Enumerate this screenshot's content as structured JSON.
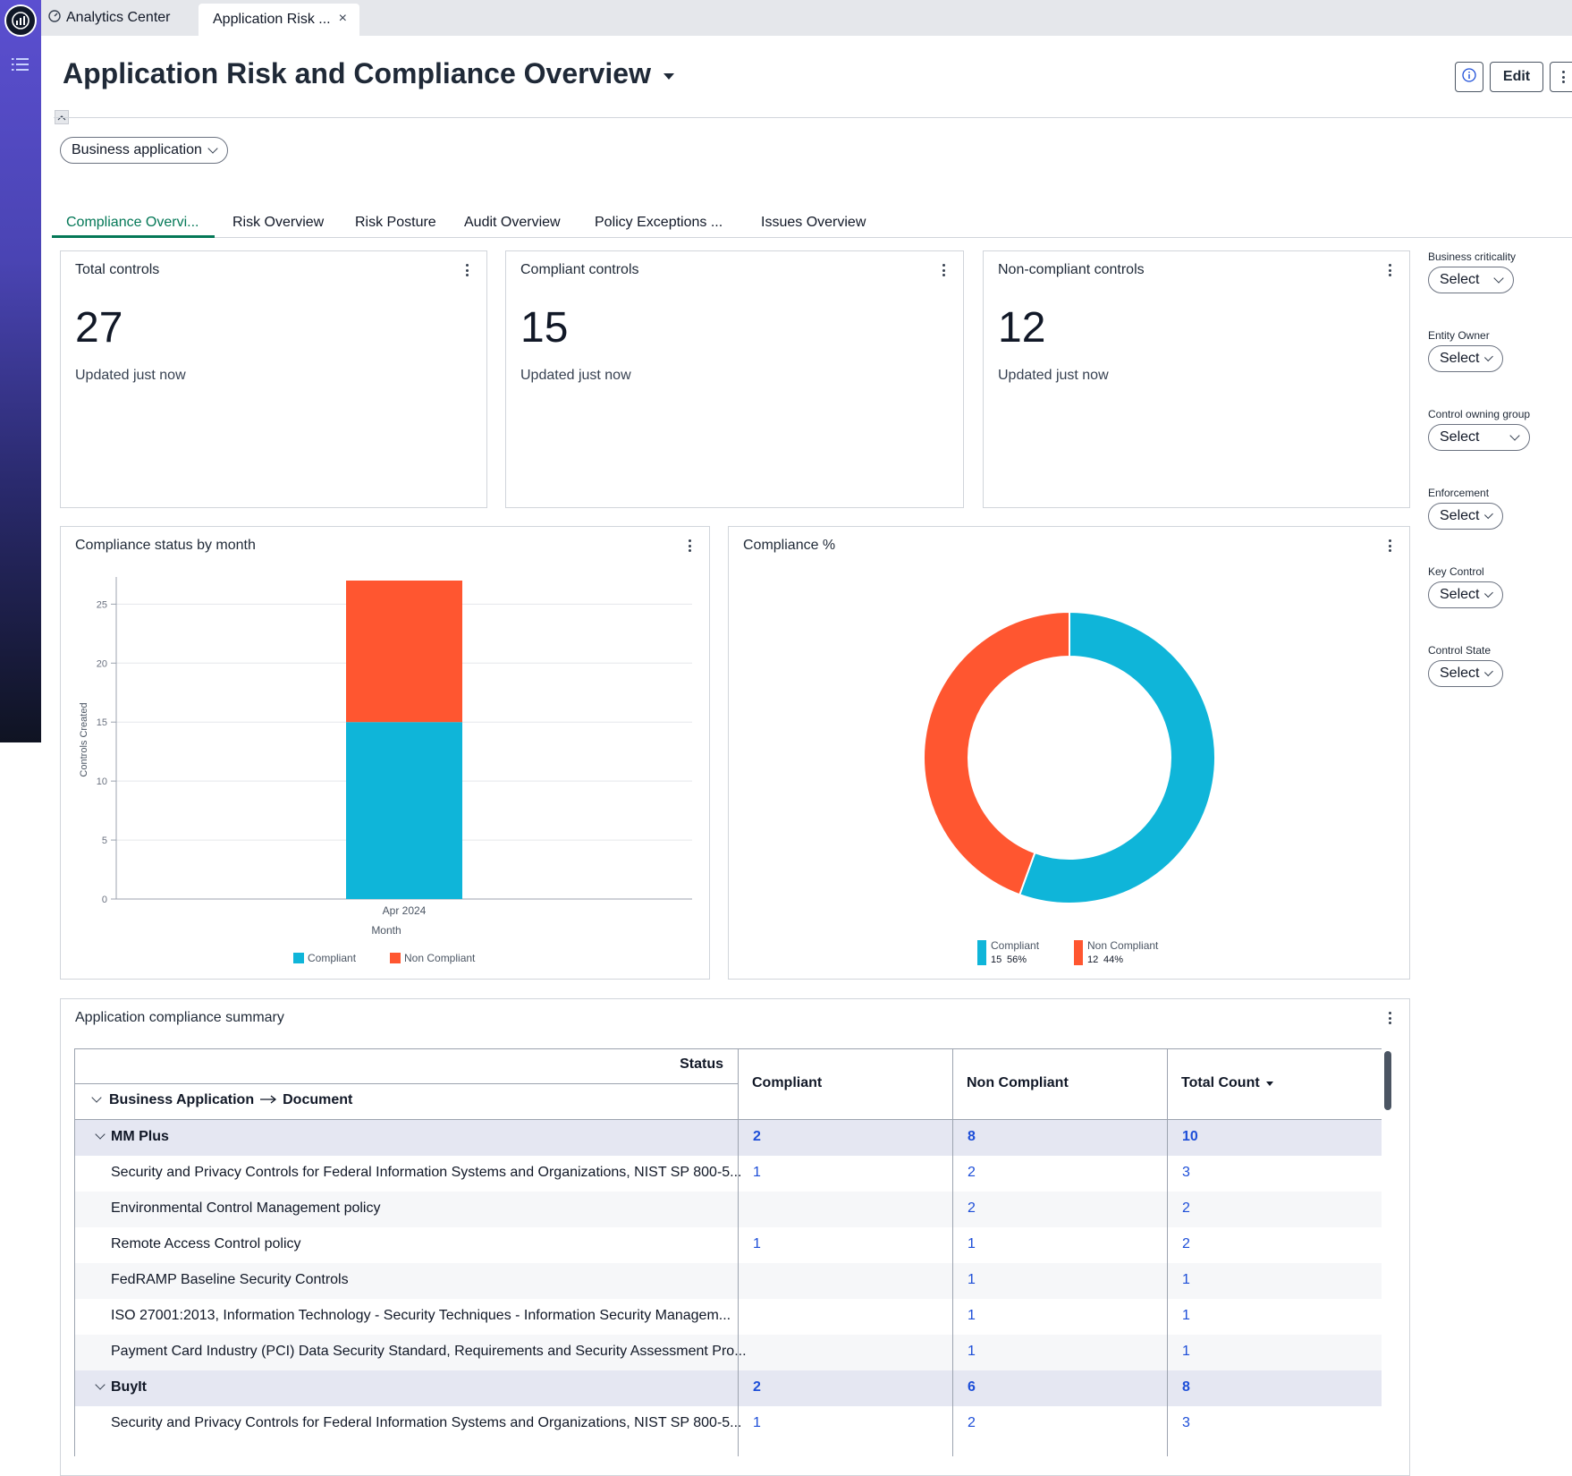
{
  "app": {
    "tab_home": "Analytics Center",
    "tab_active": "Application Risk ...",
    "tab_close": "×"
  },
  "header": {
    "title": "Application Risk and Compliance Overview",
    "edit_label": "Edit",
    "info_icon": "info-icon"
  },
  "filters_top": {
    "business_application": "Business application"
  },
  "tabs": [
    {
      "label": "Compliance Overvi..."
    },
    {
      "label": "Risk Overview"
    },
    {
      "label": "Risk Posture"
    },
    {
      "label": "Audit Overview"
    },
    {
      "label": "Policy Exceptions ..."
    },
    {
      "label": "Issues Overview"
    }
  ],
  "kpis": [
    {
      "title": "Total controls",
      "value": "27",
      "subtitle": "Updated just now"
    },
    {
      "title": "Compliant controls",
      "value": "15",
      "subtitle": "Updated just now"
    },
    {
      "title": "Non-compliant controls",
      "value": "12",
      "subtitle": "Updated just now"
    }
  ],
  "side_filters": [
    {
      "label": "Business criticality",
      "value": "Select"
    },
    {
      "label": "Entity Owner",
      "value": "Select"
    },
    {
      "label": "Control owning group",
      "value": "Select"
    },
    {
      "label": "Enforcement",
      "value": "Select"
    },
    {
      "label": "Key Control",
      "value": "Select"
    },
    {
      "label": "Control State",
      "value": "Select"
    }
  ],
  "colors": {
    "compliant": "#0fb5d9",
    "non_compliant": "#ff5630",
    "accent": "#047857",
    "link": "#1d4ed8"
  },
  "chart_data": [
    {
      "type": "bar",
      "stacked": true,
      "title": "Compliance status by month",
      "categories": [
        "Apr 2024"
      ],
      "series": [
        {
          "name": "Compliant",
          "values": [
            15
          ]
        },
        {
          "name": "Non Compliant",
          "values": [
            12
          ]
        }
      ],
      "xlabel": "Month",
      "ylabel": "Controls Created",
      "ylim": [
        0,
        27
      ],
      "yticks": [
        0,
        5,
        10,
        15,
        20,
        25
      ],
      "grid": true,
      "legend": "bottom"
    },
    {
      "type": "pie",
      "donut": true,
      "title": "Compliance %",
      "labels": [
        "Compliant",
        "Non Compliant"
      ],
      "values": [
        15,
        12
      ],
      "percents": [
        "56%",
        "44%"
      ],
      "legend": "bottom"
    }
  ],
  "table": {
    "title": "Application compliance summary",
    "header_status": "Status",
    "header_row_dim": "Business Application",
    "header_row_dim2": "Document",
    "columns": [
      "Compliant",
      "Non Compliant",
      "Total Count"
    ],
    "rows": [
      {
        "type": "group",
        "name": "MM Plus",
        "compliant": "2",
        "non_compliant": "8",
        "total": "10"
      },
      {
        "type": "item",
        "name": "Security and Privacy Controls for Federal Information Systems and Organizations, NIST SP 800-5...",
        "compliant": "1",
        "non_compliant": "2",
        "total": "3"
      },
      {
        "type": "item",
        "name": "Environmental Control Management policy",
        "compliant": "",
        "non_compliant": "2",
        "total": "2"
      },
      {
        "type": "item",
        "name": "Remote Access Control policy",
        "compliant": "1",
        "non_compliant": "1",
        "total": "2"
      },
      {
        "type": "item",
        "name": "FedRAMP Baseline Security Controls",
        "compliant": "",
        "non_compliant": "1",
        "total": "1"
      },
      {
        "type": "item",
        "name": "ISO 27001:2013, Information Technology - Security Techniques - Information Security Managem...",
        "compliant": "",
        "non_compliant": "1",
        "total": "1"
      },
      {
        "type": "item",
        "name": "Payment Card Industry (PCI) Data Security Standard, Requirements and Security Assessment Pro...",
        "compliant": "",
        "non_compliant": "1",
        "total": "1"
      },
      {
        "type": "group",
        "name": "BuyIt",
        "compliant": "2",
        "non_compliant": "6",
        "total": "8"
      },
      {
        "type": "item",
        "name": "Security and Privacy Controls for Federal Information Systems and Organizations, NIST SP 800-5...",
        "compliant": "1",
        "non_compliant": "2",
        "total": "3"
      }
    ]
  }
}
